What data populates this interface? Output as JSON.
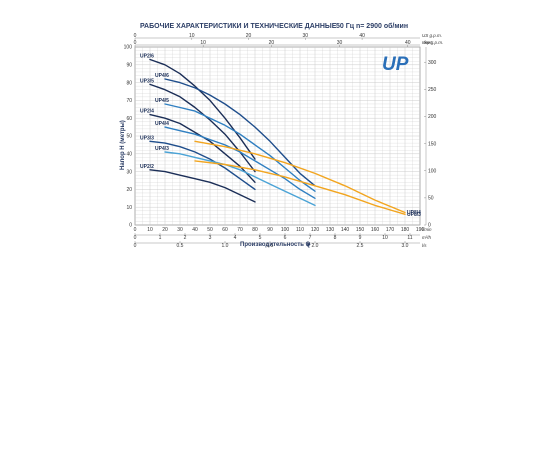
{
  "header": {
    "title": "РАБОЧИЕ ХАРАКТЕРИСТИКИ И ТЕХНИЧЕСКИЕ ДАННЫЕ",
    "freq": "50 Гц",
    "speed": "n= 2900 об/мин"
  },
  "logo": "UP",
  "colors": {
    "navy": "#1b2e57",
    "dark_blue": "#1f4e8c",
    "mid_blue": "#2f7fc1",
    "light_blue": "#4aa3d6",
    "orange": "#f2a51f",
    "grid": "#c7c7c7"
  },
  "chart_data": {
    "type": "line",
    "title": "",
    "xlabel": "Производительность Q",
    "ylabel": "Напор H (метры)",
    "xlim": [
      0,
      190
    ],
    "ylim": [
      0,
      100
    ],
    "x_unit": "l/min",
    "y_ticks": [
      "0",
      "10",
      "20",
      "30",
      "40",
      "50",
      "60",
      "70",
      "80",
      "90",
      "100"
    ],
    "x_ticks": [
      "0",
      "10",
      "20",
      "30",
      "40",
      "50",
      "60",
      "70",
      "80",
      "90",
      "100",
      "110",
      "120",
      "130",
      "140",
      "150",
      "160",
      "170",
      "180",
      "190"
    ],
    "top_axis_1": {
      "ticks": [
        "0",
        "10",
        "20",
        "30",
        "40"
      ],
      "unit": "US g.p.m."
    },
    "top_axis_2": {
      "ticks": [
        "0",
        "10",
        "20",
        "30",
        "40"
      ],
      "unit": "Imp g.p.m."
    },
    "bottom_axis_1": {
      "ticks": [
        "0",
        "1",
        "2",
        "3",
        "4",
        "5",
        "6",
        "7",
        "8",
        "9",
        "10",
        "11"
      ],
      "unit": "m³/h"
    },
    "bottom_axis_2": {
      "ticks": [
        "0",
        "0.5",
        "1.0",
        "1.5",
        "2.0",
        "2.5",
        "3.0"
      ],
      "unit": "l/s"
    },
    "right_axis": {
      "ticks": [
        "0",
        "50",
        "100",
        "150",
        "200",
        "250",
        "300"
      ],
      "unit": "feet"
    },
    "series": [
      {
        "name": "UP2/6",
        "color": "#1b2e57",
        "x": [
          10,
          20,
          30,
          40,
          50,
          60,
          70,
          80
        ],
        "y": [
          93,
          90,
          85,
          78,
          70,
          60,
          49,
          37
        ]
      },
      {
        "name": "UP3/5",
        "color": "#1b2e57",
        "x": [
          10,
          20,
          30,
          40,
          50,
          60,
          70,
          80
        ],
        "y": [
          79,
          76,
          72,
          66,
          59,
          51,
          41,
          30
        ]
      },
      {
        "name": "UP4/6",
        "color": "#1f4e8c",
        "x": [
          20,
          30,
          40,
          50,
          60,
          70,
          80,
          90,
          100,
          110,
          120
        ],
        "y": [
          82,
          80,
          77,
          73,
          68,
          62,
          55,
          47,
          38,
          29,
          22
        ]
      },
      {
        "name": "UP2/4",
        "color": "#1b2e57",
        "x": [
          10,
          20,
          30,
          40,
          50,
          60,
          70,
          80
        ],
        "y": [
          62,
          60,
          57,
          52,
          47,
          40,
          33,
          24
        ]
      },
      {
        "name": "UP4/5",
        "color": "#2f7fc1",
        "x": [
          20,
          30,
          40,
          50,
          60,
          70,
          80,
          90,
          100,
          110,
          120
        ],
        "y": [
          68,
          66,
          64,
          60,
          56,
          51,
          45,
          39,
          32,
          25,
          19
        ]
      },
      {
        "name": "UP4/4",
        "color": "#2f7fc1",
        "x": [
          20,
          30,
          40,
          50,
          60,
          70,
          80,
          90,
          100,
          110,
          120
        ],
        "y": [
          55,
          53,
          51,
          48,
          45,
          41,
          36,
          31,
          26,
          20,
          15
        ]
      },
      {
        "name": "UP3/3",
        "color": "#1f4e8c",
        "x": [
          10,
          20,
          30,
          40,
          50,
          60,
          70,
          80
        ],
        "y": [
          47,
          46,
          44,
          41,
          37,
          32,
          26,
          20
        ]
      },
      {
        "name": "UP4/3",
        "color": "#4aa3d6",
        "x": [
          20,
          30,
          40,
          50,
          60,
          70,
          80,
          90,
          100,
          110,
          120
        ],
        "y": [
          41,
          40,
          38,
          36,
          34,
          31,
          27,
          23,
          19,
          15,
          11
        ]
      },
      {
        "name": "UP2/2",
        "color": "#1b2e57",
        "x": [
          10,
          20,
          30,
          40,
          50,
          60,
          70,
          80
        ],
        "y": [
          31,
          30,
          28,
          26,
          24,
          21,
          17,
          13
        ]
      },
      {
        "name": "UP8/4",
        "color": "#f2a51f",
        "x": [
          40,
          60,
          80,
          100,
          120,
          140,
          160,
          180
        ],
        "y": [
          47,
          44,
          40,
          35,
          29,
          22,
          14,
          7
        ]
      },
      {
        "name": "UP8/3",
        "color": "#f2a51f",
        "x": [
          40,
          60,
          80,
          100,
          120,
          140,
          160,
          180
        ],
        "y": [
          36,
          34,
          31,
          27,
          22,
          17,
          11,
          6
        ]
      }
    ]
  }
}
